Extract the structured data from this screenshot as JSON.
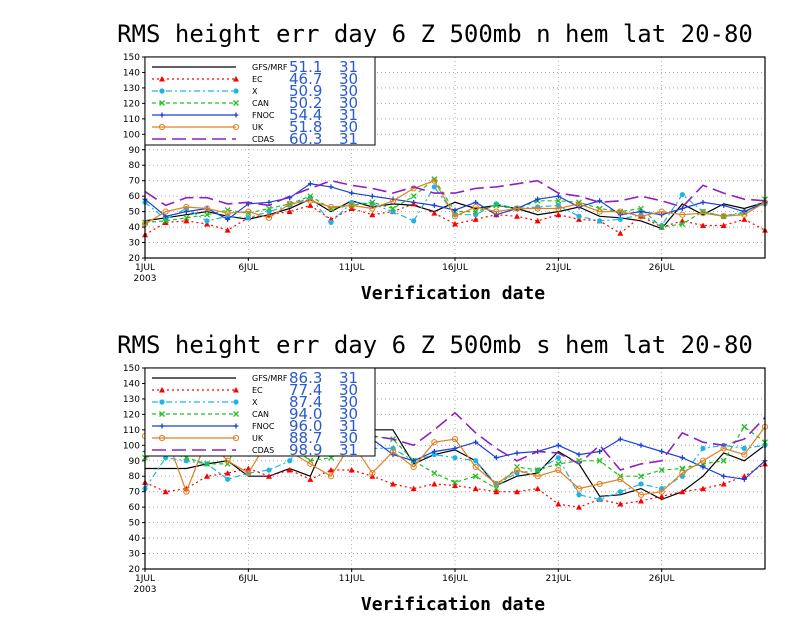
{
  "chart_data": [
    {
      "type": "line",
      "title": "RMS height err   day 6  Z 500mb   n hem  lat 20-80",
      "xlabel": "Verification date",
      "ylabel": "",
      "ylim": [
        20,
        150
      ],
      "yticks": [
        20,
        30,
        40,
        50,
        60,
        70,
        80,
        90,
        100,
        110,
        120,
        130,
        140,
        150
      ],
      "xlim": [
        1,
        31
      ],
      "xticks": [
        {
          "x": 1,
          "label": "1JUL"
        },
        {
          "x": 6,
          "label": "6JUL"
        },
        {
          "x": 11,
          "label": "11JUL"
        },
        {
          "x": 16,
          "label": "16JUL"
        },
        {
          "x": 21,
          "label": "21JUL"
        },
        {
          "x": 26,
          "label": "26JUL"
        }
      ],
      "year_label": "2003",
      "grid": true,
      "legend_position": "top-left",
      "x": [
        1,
        2,
        3,
        4,
        5,
        6,
        7,
        8,
        9,
        10,
        11,
        12,
        13,
        14,
        15,
        16,
        17,
        18,
        19,
        20,
        21,
        22,
        23,
        24,
        25,
        26,
        27,
        28,
        29,
        30,
        31
      ],
      "series": [
        {
          "name": "GFS/MRF",
          "mean": "51.1",
          "count": "31",
          "color": "#000000",
          "dash": "",
          "marker": "none",
          "values": [
            44,
            46,
            48,
            50,
            47,
            45,
            48,
            52,
            58,
            50,
            57,
            53,
            55,
            54,
            50,
            56,
            52,
            54,
            52,
            48,
            50,
            53,
            47,
            46,
            44,
            39,
            55,
            48,
            55,
            52,
            56
          ]
        },
        {
          "name": "EC",
          "mean": "46.7",
          "count": "30",
          "color": "#ff0000",
          "dash": "2,3",
          "marker": "triangle",
          "values": [
            35,
            43,
            44,
            42,
            38,
            46,
            48,
            50,
            54,
            45,
            52,
            48,
            50,
            55,
            49,
            42,
            45,
            48,
            47,
            44,
            48,
            45,
            44,
            36,
            47,
            40,
            44,
            41,
            41,
            45,
            38
          ]
        },
        {
          "name": "X",
          "mean": "50.9",
          "count": "30",
          "color": "#1eb4e6",
          "dash": "6,3,2,3",
          "marker": "circle",
          "values": [
            56,
            45,
            52,
            44,
            47,
            46,
            50,
            54,
            59,
            43,
            56,
            55,
            50,
            44,
            66,
            48,
            48,
            55,
            52,
            53,
            54,
            47,
            44,
            45,
            48,
            41,
            61,
            50,
            47,
            50,
            55
          ]
        },
        {
          "name": "CAN",
          "mean": "50.2",
          "count": "30",
          "color": "#22c022",
          "dash": "4,3",
          "marker": "x",
          "values": [
            43,
            44,
            46,
            48,
            51,
            49,
            52,
            55,
            60,
            52,
            54,
            56,
            52,
            60,
            71,
            50,
            50,
            54,
            52,
            57,
            57,
            56,
            52,
            50,
            52,
            40,
            42,
            50,
            47,
            49,
            58
          ]
        },
        {
          "name": "FNOC",
          "mean": "54.4",
          "count": "31",
          "color": "#1a40d8",
          "dash": "",
          "marker": "plus",
          "values": [
            58,
            47,
            50,
            52,
            45,
            55,
            56,
            59,
            68,
            66,
            62,
            60,
            58,
            56,
            54,
            51,
            56,
            48,
            52,
            58,
            60,
            53,
            57,
            48,
            50,
            48,
            52,
            56,
            54,
            50,
            56
          ]
        },
        {
          "name": "UK",
          "mean": "51.8",
          "count": "30",
          "color": "#e08020",
          "dash": "",
          "marker": "ocircle",
          "values": [
            42,
            50,
            53,
            52,
            49,
            50,
            46,
            55,
            57,
            53,
            54,
            52,
            57,
            65,
            70,
            47,
            53,
            50,
            52,
            52,
            52,
            55,
            50,
            50,
            47,
            50,
            48,
            49,
            47,
            48,
            56
          ]
        },
        {
          "name": "CDAS",
          "mean": "60.3",
          "count": "31",
          "color": "#9020c0",
          "dash": "14,6",
          "marker": "none",
          "values": [
            63,
            54,
            59,
            59,
            55,
            56,
            54,
            60,
            65,
            70,
            67,
            65,
            62,
            66,
            62,
            62,
            65,
            66,
            68,
            70,
            62,
            60,
            56,
            57,
            60,
            57,
            53,
            67,
            62,
            58,
            57
          ]
        }
      ]
    },
    {
      "type": "line",
      "title": "RMS height err   day 6  Z 500mb   s hem  lat 20-80",
      "xlabel": "Verification date",
      "ylabel": "",
      "ylim": [
        20,
        150
      ],
      "yticks": [
        20,
        30,
        40,
        50,
        60,
        70,
        80,
        90,
        100,
        110,
        120,
        130,
        140,
        150
      ],
      "xlim": [
        1,
        31
      ],
      "xticks": [
        {
          "x": 1,
          "label": "1JUL"
        },
        {
          "x": 6,
          "label": "6JUL"
        },
        {
          "x": 11,
          "label": "11JUL"
        },
        {
          "x": 16,
          "label": "16JUL"
        },
        {
          "x": 21,
          "label": "21JUL"
        },
        {
          "x": 26,
          "label": "26JUL"
        }
      ],
      "year_label": "2003",
      "grid": true,
      "legend_position": "top-left",
      "x": [
        1,
        2,
        3,
        4,
        5,
        6,
        7,
        8,
        9,
        10,
        11,
        12,
        13,
        14,
        15,
        16,
        17,
        18,
        19,
        20,
        21,
        22,
        23,
        24,
        25,
        26,
        27,
        28,
        29,
        30,
        31
      ],
      "series": [
        {
          "name": "GFS/MRF",
          "mean": "86.3",
          "count": "31",
          "color": "#000000",
          "dash": "",
          "marker": "none",
          "values": [
            85,
            85,
            85,
            88,
            90,
            80,
            80,
            85,
            80,
            110,
            98,
            110,
            110,
            88,
            94,
            97,
            90,
            74,
            80,
            82,
            96,
            88,
            67,
            68,
            72,
            65,
            70,
            80,
            95,
            90,
            100
          ]
        },
        {
          "name": "EC",
          "mean": "77.4",
          "count": "30",
          "color": "#ff0000",
          "dash": "2,3",
          "marker": "triangle",
          "values": [
            76,
            70,
            72,
            80,
            82,
            85,
            80,
            84,
            78,
            84,
            84,
            80,
            75,
            72,
            75,
            74,
            72,
            70,
            70,
            72,
            62,
            60,
            65,
            62,
            64,
            67,
            70,
            72,
            75,
            80,
            88
          ]
        },
        {
          "name": "X",
          "mean": "87.4",
          "count": "30",
          "color": "#1eb4e6",
          "dash": "6,3,2,3",
          "marker": "circle",
          "values": [
            72,
            92,
            90,
            88,
            78,
            82,
            84,
            90,
            105,
            105,
            115,
            98,
            98,
            90,
            94,
            92,
            90,
            75,
            82,
            84,
            92,
            68,
            65,
            70,
            75,
            72,
            80,
            98,
            100,
            98,
            100
          ]
        },
        {
          "name": "CAN",
          "mean": "94.0",
          "count": "30",
          "color": "#22c022",
          "dash": "4,3",
          "marker": "x",
          "values": [
            92,
            96,
            92,
            88,
            88,
            118,
            126,
            100,
            90,
            92,
            100,
            106,
            104,
            90,
            82,
            76,
            80,
            72,
            86,
            84,
            88,
            90,
            90,
            80,
            80,
            84,
            85,
            88,
            90,
            112,
            102
          ]
        },
        {
          "name": "FNOC",
          "mean": "96.0",
          "count": "31",
          "color": "#1a40d8",
          "dash": "",
          "marker": "plus",
          "values": [
            96,
            100,
            98,
            105,
            100,
            108,
            110,
            106,
            104,
            112,
            110,
            104,
            94,
            90,
            96,
            98,
            102,
            92,
            95,
            96,
            100,
            94,
            96,
            104,
            100,
            96,
            92,
            86,
            80,
            78,
            90
          ]
        },
        {
          "name": "UK",
          "mean": "88.7",
          "count": "30",
          "color": "#e08020",
          "dash": "",
          "marker": "ocircle",
          "values": [
            106,
            107,
            70,
            104,
            90,
            82,
            104,
            96,
            88,
            80,
            102,
            82,
            96,
            86,
            102,
            104,
            86,
            75,
            84,
            80,
            84,
            72,
            75,
            78,
            68,
            70,
            82,
            90,
            98,
            94,
            112
          ]
        },
        {
          "name": "CDAS",
          "mean": "98.9",
          "count": "31",
          "color": "#9020c0",
          "dash": "14,6",
          "marker": "none",
          "values": [
            104,
            98,
            108,
            102,
            110,
            112,
            108,
            106,
            100,
            104,
            112,
            106,
            104,
            100,
            110,
            121,
            108,
            98,
            90,
            96,
            95,
            88,
            100,
            84,
            88,
            90,
            108,
            102,
            100,
            104,
            118
          ]
        }
      ]
    }
  ]
}
